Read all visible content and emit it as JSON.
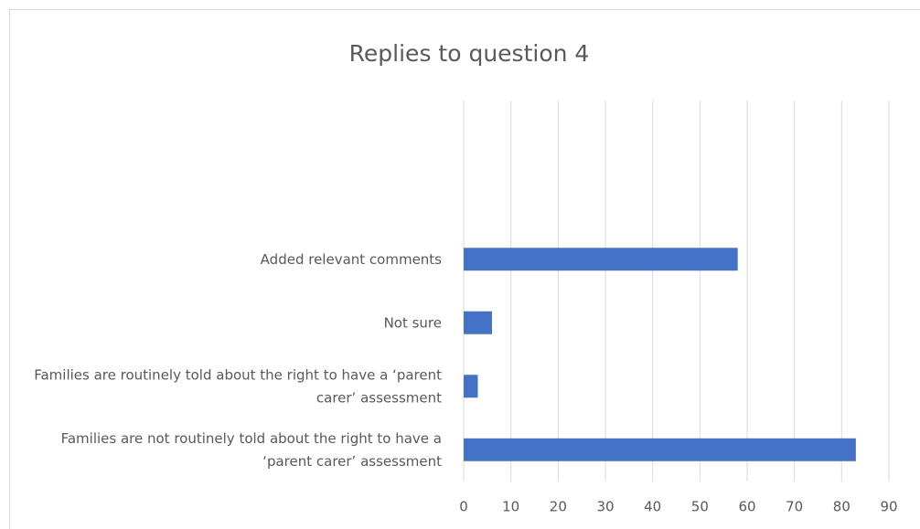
{
  "chart_data": {
    "type": "bar",
    "orientation": "horizontal",
    "title": "Replies to question 4",
    "categories": [
      "Added relevant comments",
      "Not sure",
      "Families are routinely told about the right to have a ‘parent carer’ assessment",
      "Families are not routinely told about the right to have a ‘parent carer’ assessment"
    ],
    "values": [
      58,
      6,
      3,
      83
    ],
    "color": "#4472c4",
    "xlim": [
      0,
      90
    ],
    "xticks": [
      0,
      10,
      20,
      30,
      40,
      50,
      60,
      70,
      80,
      90
    ],
    "grid": true
  }
}
